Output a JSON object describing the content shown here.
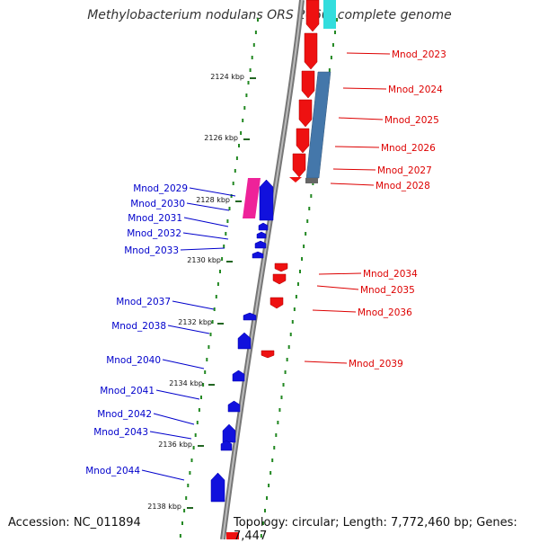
{
  "title": "Methylobacterium nodulans ORS 2060, complete genome",
  "accession_label": "Accession: NC_011894",
  "topology_label": "Topology: circular; Length: 7,772,460 bp; Genes: 7,447",
  "ticks": [
    "2124 kbp",
    "2126 kbp",
    "2128 kbp",
    "2130 kbp",
    "2132 kbp",
    "2134 kbp",
    "2136 kbp",
    "2138 kbp"
  ],
  "genes_forward": [
    "Mnod_2023",
    "Mnod_2024",
    "Mnod_2025",
    "Mnod_2026",
    "Mnod_2027",
    "Mnod_2028",
    "Mnod_2034",
    "Mnod_2035",
    "Mnod_2036",
    "Mnod_2039"
  ],
  "genes_reverse": [
    "Mnod_2029",
    "Mnod_2030",
    "Mnod_2031",
    "Mnod_2032",
    "Mnod_2033",
    "Mnod_2037",
    "Mnod_2038",
    "Mnod_2040",
    "Mnod_2041",
    "Mnod_2042",
    "Mnod_2043",
    "Mnod_2044"
  ],
  "colors": {
    "forward_gene": "#ee1111",
    "reverse_gene": "#1111dd",
    "rna_feature": "#ee2299",
    "blue_feature": "#4477aa",
    "cyan_feature": "#33dddd",
    "backbone": "#8a8a8a",
    "dotted_track": "#228822"
  }
}
